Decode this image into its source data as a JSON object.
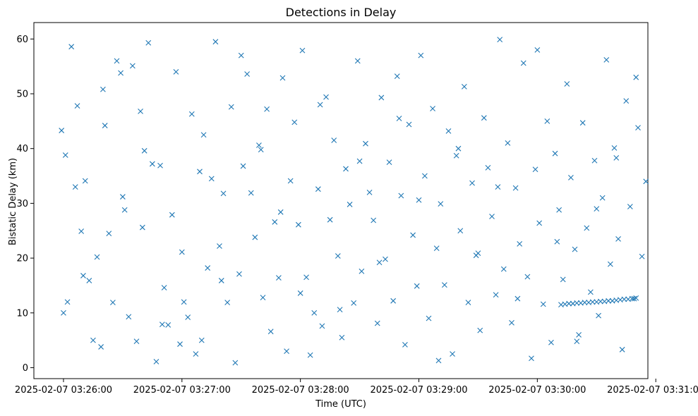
{
  "chart_data": {
    "type": "scatter",
    "title": "Detections in Delay",
    "xlabel": "Time (UTC)",
    "ylabel": "Bistatic Delay (km)",
    "marker": "x",
    "color": "#1f77b4",
    "grid": false,
    "legend": false,
    "xlim": [
      "2025-02-07 03:25:45",
      "2025-02-07 03:30:56"
    ],
    "ylim": [
      -2,
      63
    ],
    "x_ticks": [
      "2025-02-07 03:26:00",
      "2025-02-07 03:27:00",
      "2025-02-07 03:28:00",
      "2025-02-07 03:29:00",
      "2025-02-07 03:30:00",
      "2025-02-07 03:31:00"
    ],
    "y_ticks": [
      0,
      10,
      20,
      30,
      40,
      50,
      60
    ],
    "series": [
      {
        "x": [
          "2025-02-07 03:25:59",
          "2025-02-07 03:26:01",
          "2025-02-07 03:26:02",
          "2025-02-07 03:26:04",
          "2025-02-07 03:26:06",
          "2025-02-07 03:26:07",
          "2025-02-07 03:26:09",
          "2025-02-07 03:26:11",
          "2025-02-07 03:26:13",
          "2025-02-07 03:26:15",
          "2025-02-07 03:26:17",
          "2025-02-07 03:26:19",
          "2025-02-07 03:26:21",
          "2025-02-07 03:26:23",
          "2025-02-07 03:26:25",
          "2025-02-07 03:26:27",
          "2025-02-07 03:26:29",
          "2025-02-07 03:26:31",
          "2025-02-07 03:26:33",
          "2025-02-07 03:26:35",
          "2025-02-07 03:26:37",
          "2025-02-07 03:26:39",
          "2025-02-07 03:26:41",
          "2025-02-07 03:26:43",
          "2025-02-07 03:26:45",
          "2025-02-07 03:26:47",
          "2025-02-07 03:26:49",
          "2025-02-07 03:26:51",
          "2025-02-07 03:26:53",
          "2025-02-07 03:26:55",
          "2025-02-07 03:26:57",
          "2025-02-07 03:26:59",
          "2025-02-07 03:27:01",
          "2025-02-07 03:27:03",
          "2025-02-07 03:27:05",
          "2025-02-07 03:27:07",
          "2025-02-07 03:27:09",
          "2025-02-07 03:27:11",
          "2025-02-07 03:27:13",
          "2025-02-07 03:27:15",
          "2025-02-07 03:27:17",
          "2025-02-07 03:27:19",
          "2025-02-07 03:27:21",
          "2025-02-07 03:27:23",
          "2025-02-07 03:27:25",
          "2025-02-07 03:27:27",
          "2025-02-07 03:27:29",
          "2025-02-07 03:27:31",
          "2025-02-07 03:27:33",
          "2025-02-07 03:27:35",
          "2025-02-07 03:27:37",
          "2025-02-07 03:27:39",
          "2025-02-07 03:27:41",
          "2025-02-07 03:27:43",
          "2025-02-07 03:27:45",
          "2025-02-07 03:27:47",
          "2025-02-07 03:27:49",
          "2025-02-07 03:27:51",
          "2025-02-07 03:27:53",
          "2025-02-07 03:27:55",
          "2025-02-07 03:27:57",
          "2025-02-07 03:27:59",
          "2025-02-07 03:28:01",
          "2025-02-07 03:28:03",
          "2025-02-07 03:28:05",
          "2025-02-07 03:28:07",
          "2025-02-07 03:28:09",
          "2025-02-07 03:28:11",
          "2025-02-07 03:28:13",
          "2025-02-07 03:28:15",
          "2025-02-07 03:28:17",
          "2025-02-07 03:28:19",
          "2025-02-07 03:28:21",
          "2025-02-07 03:28:23",
          "2025-02-07 03:28:25",
          "2025-02-07 03:28:27",
          "2025-02-07 03:28:29",
          "2025-02-07 03:28:31",
          "2025-02-07 03:28:33",
          "2025-02-07 03:28:35",
          "2025-02-07 03:28:37",
          "2025-02-07 03:28:39",
          "2025-02-07 03:28:41",
          "2025-02-07 03:28:43",
          "2025-02-07 03:28:45",
          "2025-02-07 03:28:47",
          "2025-02-07 03:28:49",
          "2025-02-07 03:28:51",
          "2025-02-07 03:28:53",
          "2025-02-07 03:28:55",
          "2025-02-07 03:28:57",
          "2025-02-07 03:28:59",
          "2025-02-07 03:29:01",
          "2025-02-07 03:29:03",
          "2025-02-07 03:29:05",
          "2025-02-07 03:29:07",
          "2025-02-07 03:29:09",
          "2025-02-07 03:29:11",
          "2025-02-07 03:29:13",
          "2025-02-07 03:29:15",
          "2025-02-07 03:29:17",
          "2025-02-07 03:29:19",
          "2025-02-07 03:29:21",
          "2025-02-07 03:29:23",
          "2025-02-07 03:29:25",
          "2025-02-07 03:29:27",
          "2025-02-07 03:29:29",
          "2025-02-07 03:29:31",
          "2025-02-07 03:29:33",
          "2025-02-07 03:29:35",
          "2025-02-07 03:29:37",
          "2025-02-07 03:29:39",
          "2025-02-07 03:29:41",
          "2025-02-07 03:29:43",
          "2025-02-07 03:29:45",
          "2025-02-07 03:29:47",
          "2025-02-07 03:29:49",
          "2025-02-07 03:29:51",
          "2025-02-07 03:29:53",
          "2025-02-07 03:29:55",
          "2025-02-07 03:29:57",
          "2025-02-07 03:29:59",
          "2025-02-07 03:30:01",
          "2025-02-07 03:30:03",
          "2025-02-07 03:30:05",
          "2025-02-07 03:30:07",
          "2025-02-07 03:30:09",
          "2025-02-07 03:30:11",
          "2025-02-07 03:30:13",
          "2025-02-07 03:30:15",
          "2025-02-07 03:30:17",
          "2025-02-07 03:30:19",
          "2025-02-07 03:30:21",
          "2025-02-07 03:30:23",
          "2025-02-07 03:30:25",
          "2025-02-07 03:30:27",
          "2025-02-07 03:30:29",
          "2025-02-07 03:30:31",
          "2025-02-07 03:30:33",
          "2025-02-07 03:30:35",
          "2025-02-07 03:30:37",
          "2025-02-07 03:30:39",
          "2025-02-07 03:30:41",
          "2025-02-07 03:30:43",
          "2025-02-07 03:30:45",
          "2025-02-07 03:30:47",
          "2025-02-07 03:30:49",
          "2025-02-07 03:30:51",
          "2025-02-07 03:30:53",
          "2025-02-07 03:30:55",
          "2025-02-07 03:26:00",
          "2025-02-07 03:26:10",
          "2025-02-07 03:26:20",
          "2025-02-07 03:26:30",
          "2025-02-07 03:26:40",
          "2025-02-07 03:26:50",
          "2025-02-07 03:27:00",
          "2025-02-07 03:27:10",
          "2025-02-07 03:27:20",
          "2025-02-07 03:27:30",
          "2025-02-07 03:27:40",
          "2025-02-07 03:27:50",
          "2025-02-07 03:28:00",
          "2025-02-07 03:28:10",
          "2025-02-07 03:28:20",
          "2025-02-07 03:28:30",
          "2025-02-07 03:28:40",
          "2025-02-07 03:28:50",
          "2025-02-07 03:29:00",
          "2025-02-07 03:29:10",
          "2025-02-07 03:29:20",
          "2025-02-07 03:29:30",
          "2025-02-07 03:29:40",
          "2025-02-07 03:29:50",
          "2025-02-07 03:30:00",
          "2025-02-07 03:30:10",
          "2025-02-07 03:30:20",
          "2025-02-07 03:30:30",
          "2025-02-07 03:30:40",
          "2025-02-07 03:30:50",
          "2025-02-07 03:30:12",
          "2025-02-07 03:30:14",
          "2025-02-07 03:30:16",
          "2025-02-07 03:30:18",
          "2025-02-07 03:30:20",
          "2025-02-07 03:30:22",
          "2025-02-07 03:30:24",
          "2025-02-07 03:30:26",
          "2025-02-07 03:30:28",
          "2025-02-07 03:30:30",
          "2025-02-07 03:30:32",
          "2025-02-07 03:30:34",
          "2025-02-07 03:30:36",
          "2025-02-07 03:30:38",
          "2025-02-07 03:30:40",
          "2025-02-07 03:30:42",
          "2025-02-07 03:30:44",
          "2025-02-07 03:30:46",
          "2025-02-07 03:30:48",
          "2025-02-07 03:30:50"
        ],
        "y": [
          43.3,
          38.8,
          12.0,
          58.6,
          33.0,
          47.8,
          24.9,
          34.1,
          15.9,
          5.0,
          20.2,
          3.8,
          44.2,
          24.5,
          11.9,
          56.0,
          53.8,
          28.8,
          9.3,
          55.1,
          4.8,
          46.8,
          39.6,
          59.3,
          37.2,
          1.1,
          36.9,
          14.6,
          7.8,
          27.9,
          54.0,
          4.3,
          12.0,
          9.2,
          46.3,
          2.5,
          35.8,
          42.5,
          18.2,
          34.5,
          59.5,
          22.2,
          31.8,
          11.9,
          47.6,
          0.9,
          17.1,
          36.8,
          53.6,
          31.9,
          23.8,
          40.6,
          12.8,
          47.2,
          6.6,
          26.6,
          16.4,
          52.9,
          3.0,
          34.1,
          44.8,
          26.1,
          57.9,
          16.5,
          2.3,
          10.0,
          32.6,
          7.6,
          49.4,
          27.0,
          41.5,
          20.4,
          5.5,
          36.3,
          29.8,
          11.8,
          56.0,
          17.6,
          40.9,
          32.0,
          26.9,
          8.1,
          49.3,
          19.8,
          37.5,
          12.2,
          53.2,
          31.4,
          4.2,
          44.4,
          24.2,
          14.9,
          57.0,
          35.0,
          9.0,
          47.3,
          21.8,
          29.9,
          15.1,
          43.2,
          2.5,
          38.7,
          25.0,
          51.3,
          11.9,
          33.7,
          20.5,
          6.8,
          45.6,
          36.5,
          27.6,
          13.3,
          59.9,
          18.0,
          41.0,
          8.2,
          32.8,
          22.6,
          55.6,
          16.6,
          1.7,
          36.2,
          26.4,
          11.6,
          45.0,
          4.6,
          39.1,
          28.8,
          16.1,
          51.8,
          34.7,
          21.6,
          6.0,
          44.7,
          25.5,
          13.8,
          37.8,
          9.5,
          31.0,
          56.2,
          18.9,
          40.1,
          23.5,
          3.3,
          48.7,
          29.4,
          12.6,
          43.8,
          20.3,
          34.0,
          10.0,
          16.8,
          50.8,
          31.2,
          25.6,
          7.9,
          21.1,
          5.0,
          15.9,
          57.0,
          39.8,
          28.4,
          13.6,
          48.0,
          10.6,
          37.7,
          19.2,
          45.5,
          30.6,
          1.3,
          40.0,
          20.9,
          33.0,
          12.6,
          58.0,
          23.0,
          4.8,
          29.0,
          38.3,
          53.0,
          11.5,
          11.6,
          11.7,
          11.7,
          11.8,
          11.8,
          11.9,
          11.9,
          12.0,
          12.0,
          12.1,
          12.1,
          12.2,
          12.2,
          12.3,
          12.4,
          12.5,
          12.5,
          12.6,
          12.7
        ]
      }
    ]
  }
}
